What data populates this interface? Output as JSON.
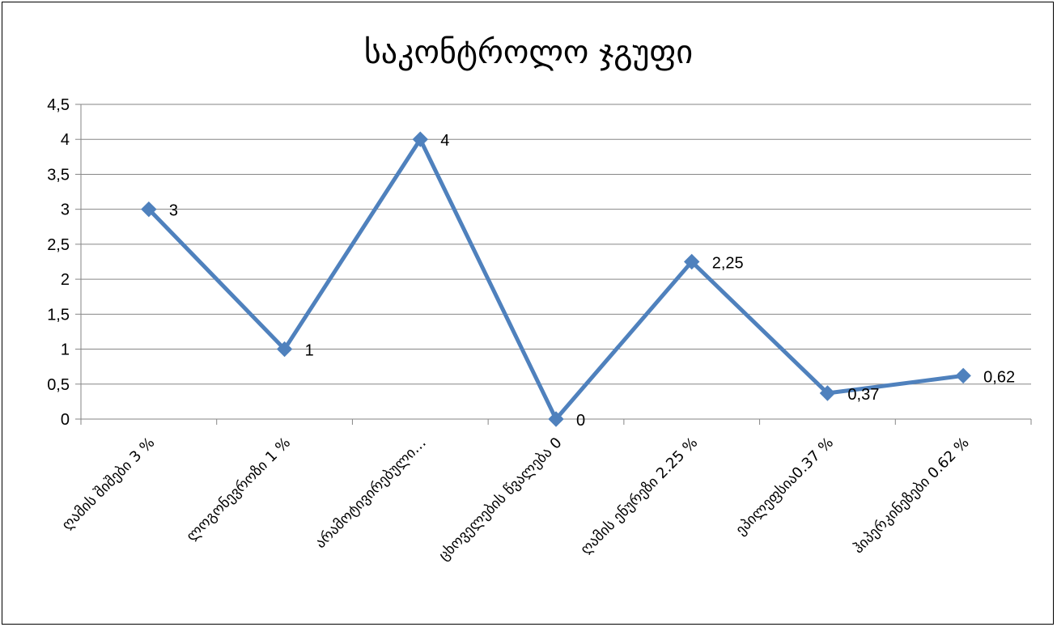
{
  "chart_data": {
    "type": "line",
    "title": "საკონტროლო ჯგუფი",
    "xlabel": "",
    "ylabel": "",
    "categories": [
      "ღამის შიშები 3 %",
      "ლოგონევროზი 1 %",
      "არამოტივირებული…",
      "ცხოველების წვალება 0",
      "ღამის ენურეზი 2.25 %",
      "ეპილეფსია0.37 %",
      "ჰიპერკინეზები 0.62 %"
    ],
    "values": [
      3,
      1,
      4,
      0,
      2.25,
      0.37,
      0.62
    ],
    "data_labels": [
      "3",
      "1",
      "4",
      "0",
      "2,25",
      "0,37",
      "0,62"
    ],
    "ylim": [
      0,
      4.5
    ],
    "yticks": [
      "0",
      "0,5",
      "1",
      "1,5",
      "2",
      "2,5",
      "3",
      "3,5",
      "4",
      "4,5"
    ],
    "grid": true,
    "legend": "none",
    "series_color": "#4F81BD"
  }
}
